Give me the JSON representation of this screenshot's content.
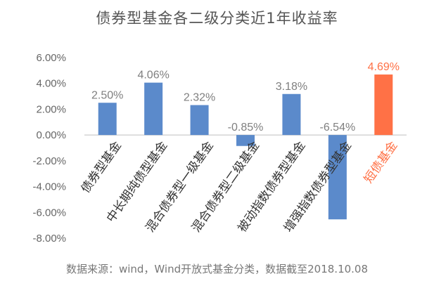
{
  "chart_data": {
    "type": "bar",
    "title": "债券型基金各二级分类近1年收益率",
    "categories": [
      "债券型基金",
      "中长期纯债型基金",
      "混合债券型一级基金",
      "混合债券型二级基金",
      "被动指数债券型基金",
      "增强指数债券型基金",
      "短债基金"
    ],
    "values": [
      2.5,
      4.06,
      2.32,
      -0.85,
      3.18,
      -6.54,
      4.69
    ],
    "value_labels": [
      "2.50%",
      "4.06%",
      "2.32%",
      "-0.85%",
      "3.18%",
      "-6.54%",
      "4.69%"
    ],
    "highlight_index": 6,
    "ylim": [
      -8,
      6
    ],
    "yticks": [
      6,
      4,
      2,
      0,
      -2,
      -4,
      -6,
      -8
    ],
    "ytick_labels": [
      "6.00%",
      "4.00%",
      "2.00%",
      "0.00%",
      "-2.00%",
      "-4.00%",
      "-6.00%",
      "-8.00%"
    ],
    "xlabel": "",
    "ylabel": "",
    "grid": false,
    "legend": "none"
  },
  "source_note": "数据来源：wind，Wind开放式基金分类，数据截至2018.10.08",
  "colors": {
    "bar": "#5B8ACB",
    "highlight_bar": "#FF7146",
    "label": "#7F7F7F",
    "highlight_label": "#FF7146",
    "category_highlight": "#FF7146",
    "category": "#333333",
    "axis": "#BFBFBF"
  }
}
